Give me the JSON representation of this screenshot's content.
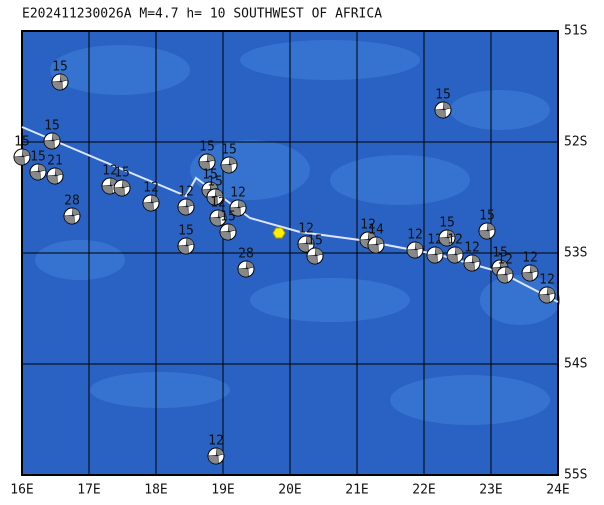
{
  "title": "E202411230026A M=4.7 h= 10 SOUTHWEST OF AFRICA",
  "longitude_labels": [
    "16E",
    "17E",
    "18E",
    "19E",
    "20E",
    "21E",
    "22E",
    "23E",
    "24E"
  ],
  "latitude_labels": [
    "51S",
    "52S",
    "53S",
    "54S",
    "55S"
  ],
  "events": [
    {
      "depth": "15"
    },
    {
      "depth": "15"
    },
    {
      "depth": "15"
    },
    {
      "depth": "15"
    },
    {
      "depth": "21"
    },
    {
      "depth": "12"
    },
    {
      "depth": "15"
    },
    {
      "depth": "12"
    },
    {
      "depth": "12"
    },
    {
      "depth": "28"
    },
    {
      "depth": "15"
    },
    {
      "depth": "15"
    },
    {
      "depth": "15"
    },
    {
      "depth": "15"
    },
    {
      "depth": "12"
    },
    {
      "depth": "12"
    },
    {
      "depth": "15"
    },
    {
      "depth": "15"
    },
    {
      "depth": "28"
    },
    {
      "depth": "12"
    },
    {
      "depth": "15"
    },
    {
      "depth": "12"
    },
    {
      "depth": "15"
    },
    {
      "depth": "12"
    },
    {
      "depth": "14"
    },
    {
      "depth": "12"
    },
    {
      "depth": "12"
    },
    {
      "depth": "15"
    },
    {
      "depth": "12"
    },
    {
      "depth": "12"
    },
    {
      "depth": "15"
    },
    {
      "depth": "15"
    },
    {
      "depth": "12"
    },
    {
      "depth": "12"
    },
    {
      "depth": "12"
    }
  ]
}
